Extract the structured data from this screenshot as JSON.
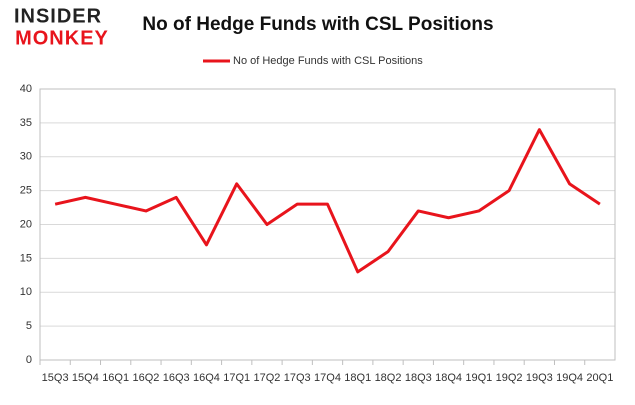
{
  "logo": {
    "line1": "INSIDER",
    "line2": "MONKEY"
  },
  "chart_data": {
    "type": "line",
    "title": "No of Hedge Funds with CSL Positions",
    "categories": [
      "15Q3",
      "15Q4",
      "16Q1",
      "16Q2",
      "16Q3",
      "16Q4",
      "17Q1",
      "17Q2",
      "17Q3",
      "17Q4",
      "18Q1",
      "18Q2",
      "18Q3",
      "18Q4",
      "19Q1",
      "19Q2",
      "19Q3",
      "19Q4",
      "20Q1"
    ],
    "series": [
      {
        "name": "No of Hedge Funds with CSL Positions",
        "color": "#e8141c",
        "values": [
          23,
          24,
          23,
          22,
          24,
          17,
          26,
          20,
          23,
          23,
          13,
          16,
          22,
          21,
          22,
          25,
          34,
          26,
          23
        ]
      }
    ],
    "ylim": [
      0,
      40
    ],
    "yticks": [
      0,
      5,
      10,
      15,
      20,
      25,
      30,
      35,
      40
    ],
    "grid": true,
    "legend": "top"
  }
}
